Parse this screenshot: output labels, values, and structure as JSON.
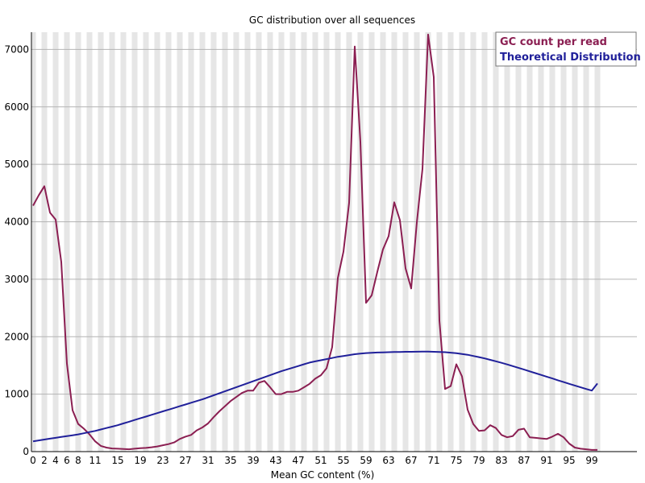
{
  "chart_data": {
    "type": "line",
    "title": "GC distribution over all sequences",
    "xlabel": "Mean GC content (%)",
    "ylabel": "",
    "x": [
      0,
      1,
      2,
      3,
      4,
      5,
      6,
      7,
      8,
      9,
      10,
      11,
      12,
      13,
      14,
      15,
      16,
      17,
      18,
      19,
      20,
      21,
      22,
      23,
      24,
      25,
      26,
      27,
      28,
      29,
      30,
      31,
      32,
      33,
      34,
      35,
      36,
      37,
      38,
      39,
      40,
      41,
      42,
      43,
      44,
      45,
      46,
      47,
      48,
      49,
      50,
      51,
      52,
      53,
      54,
      55,
      56,
      57,
      58,
      59,
      60,
      61,
      62,
      63,
      64,
      65,
      66,
      67,
      68,
      69,
      70,
      71,
      72,
      73,
      74,
      75,
      76,
      77,
      78,
      79,
      80,
      81,
      82,
      83,
      84,
      85,
      86,
      87,
      88,
      89,
      90,
      91,
      92,
      93,
      94,
      95,
      96,
      97,
      98,
      99,
      100
    ],
    "xticks": [
      0,
      2,
      4,
      6,
      8,
      11,
      15,
      19,
      23,
      27,
      31,
      35,
      39,
      43,
      47,
      51,
      55,
      59,
      63,
      67,
      71,
      75,
      79,
      83,
      87,
      91,
      95,
      99
    ],
    "ylim": [
      0,
      7300
    ],
    "yticks": [
      0,
      1000,
      2000,
      3000,
      4000,
      5000,
      6000,
      7000
    ],
    "grid": true,
    "legend_position": "top-right",
    "series": [
      {
        "name": "GC count per read",
        "color": "#8b1f52",
        "values": [
          4280,
          4460,
          4620,
          4160,
          4040,
          3300,
          1530,
          720,
          480,
          400,
          300,
          180,
          100,
          70,
          55,
          50,
          45,
          40,
          50,
          60,
          65,
          75,
          90,
          110,
          130,
          160,
          220,
          260,
          290,
          370,
          420,
          490,
          600,
          700,
          790,
          880,
          950,
          1020,
          1060,
          1060,
          1200,
          1230,
          1120,
          1000,
          1000,
          1040,
          1040,
          1060,
          1120,
          1180,
          1270,
          1330,
          1450,
          1820,
          3020,
          3480,
          4330,
          7050,
          5390,
          2590,
          2720,
          3130,
          3520,
          3750,
          4340,
          4030,
          3190,
          2840,
          3990,
          4920,
          7260,
          6520,
          2280,
          1090,
          1140,
          1520,
          1310,
          730,
          480,
          360,
          370,
          460,
          410,
          290,
          250,
          270,
          380,
          400,
          250,
          240,
          230,
          220,
          260,
          310,
          250,
          140,
          70,
          50,
          40,
          30,
          30
        ]
      },
      {
        "name": "Theoretical Distribution",
        "color": "#20209a",
        "values": [
          180,
          195,
          210,
          225,
          240,
          255,
          270,
          285,
          300,
          320,
          340,
          360,
          385,
          410,
          435,
          460,
          490,
          520,
          550,
          580,
          610,
          640,
          670,
          700,
          730,
          760,
          790,
          820,
          850,
          880,
          910,
          945,
          980,
          1015,
          1050,
          1085,
          1120,
          1155,
          1190,
          1225,
          1260,
          1295,
          1330,
          1365,
          1400,
          1430,
          1460,
          1490,
          1520,
          1550,
          1570,
          1590,
          1610,
          1630,
          1650,
          1665,
          1680,
          1695,
          1705,
          1715,
          1720,
          1725,
          1728,
          1730,
          1733,
          1735,
          1737,
          1738,
          1739,
          1740,
          1740,
          1738,
          1735,
          1730,
          1722,
          1712,
          1700,
          1685,
          1665,
          1645,
          1622,
          1598,
          1572,
          1545,
          1517,
          1488,
          1458,
          1428,
          1397,
          1366,
          1335,
          1304,
          1273,
          1242,
          1211,
          1180,
          1150,
          1120,
          1090,
          1062,
          1185
        ]
      }
    ]
  }
}
